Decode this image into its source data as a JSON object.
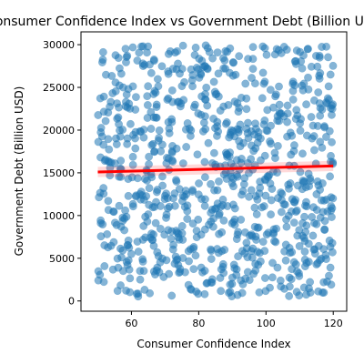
{
  "chart_data": {
    "type": "scatter",
    "title": "Consumer Confidence Index vs Government Debt (Billion USD)",
    "xlabel": "Consumer Confidence Index",
    "ylabel": "Government Debt (Billion USD)",
    "xlim": [
      45,
      124
    ],
    "ylim": [
      -1200,
      31500
    ],
    "xticks": [
      60,
      80,
      100,
      120
    ],
    "yticks": [
      0,
      5000,
      10000,
      15000,
      20000,
      25000,
      30000
    ],
    "grid": false,
    "legend": "none",
    "point_color": "#1f77b4",
    "point_alpha": 0.55,
    "trend_color": "#ff0000",
    "trendline": {
      "x": [
        50,
        120
      ],
      "y": [
        15100,
        15800
      ]
    },
    "trend_band": {
      "x": [
        50,
        120
      ],
      "upper": [
        15700,
        16400
      ],
      "lower": [
        14500,
        15200
      ]
    },
    "points": {
      "n": 900,
      "x_range": [
        50,
        120
      ],
      "y_range": [
        500,
        30000
      ],
      "distribution": "uniform"
    }
  }
}
